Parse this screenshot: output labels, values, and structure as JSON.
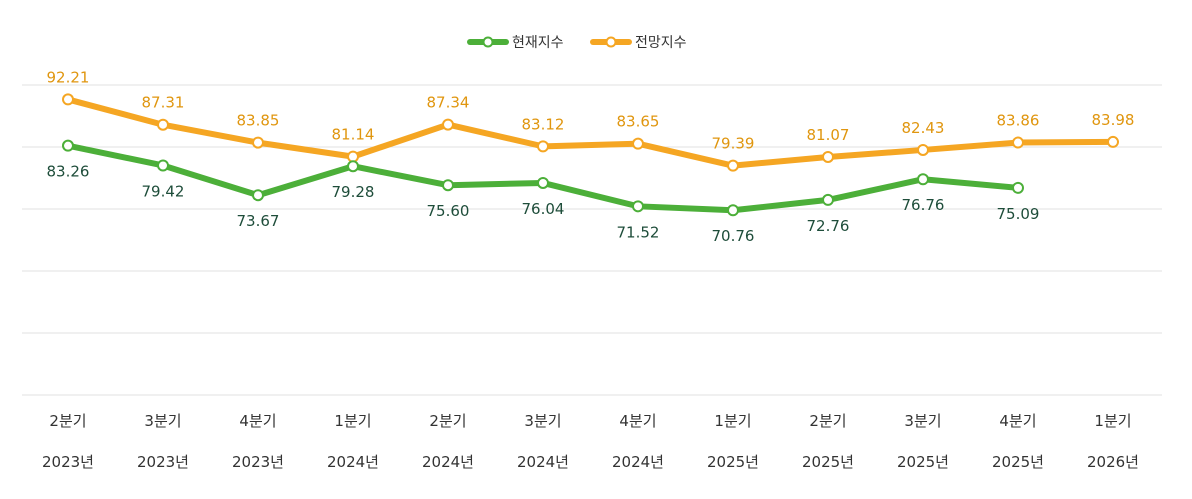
{
  "chart_data": {
    "type": "line",
    "categories": [
      [
        "2분기",
        "2023년"
      ],
      [
        "3분기",
        "2023년"
      ],
      [
        "4분기",
        "2023년"
      ],
      [
        "1분기",
        "2024년"
      ],
      [
        "2분기",
        "2024년"
      ],
      [
        "3분기",
        "2024년"
      ],
      [
        "4분기",
        "2024년"
      ],
      [
        "1분기",
        "2025년"
      ],
      [
        "2분기",
        "2025년"
      ],
      [
        "3분기",
        "2025년"
      ],
      [
        "4분기",
        "2025년"
      ],
      [
        "1분기",
        "2026년"
      ]
    ],
    "series": [
      {
        "name": "현재지수",
        "color": "#4caf39",
        "label_color": "#1e4d3a",
        "values": [
          83.26,
          79.42,
          73.67,
          79.28,
          75.6,
          76.04,
          71.52,
          70.76,
          72.76,
          76.76,
          75.09,
          null
        ],
        "labels": [
          "83.26",
          "79.42",
          "73.67",
          "79.28",
          "75.60",
          "76.04",
          "71.52",
          "70.76",
          "72.76",
          "76.76",
          "75.09",
          ""
        ]
      },
      {
        "name": "전망지수",
        "color": "#f5a623",
        "label_color": "#e0960f",
        "values": [
          92.21,
          87.31,
          83.85,
          81.14,
          87.34,
          83.12,
          83.65,
          79.39,
          81.07,
          82.43,
          83.86,
          83.98
        ],
        "labels": [
          "92.21",
          "87.31",
          "83.85",
          "81.14",
          "87.34",
          "83.12",
          "83.65",
          "79.39",
          "81.07",
          "82.43",
          "83.86",
          "83.98"
        ]
      }
    ],
    "ylim": [
      35,
      95
    ],
    "grid": true,
    "legend": "top-center",
    "title": "",
    "xlabel": "",
    "ylabel": ""
  }
}
